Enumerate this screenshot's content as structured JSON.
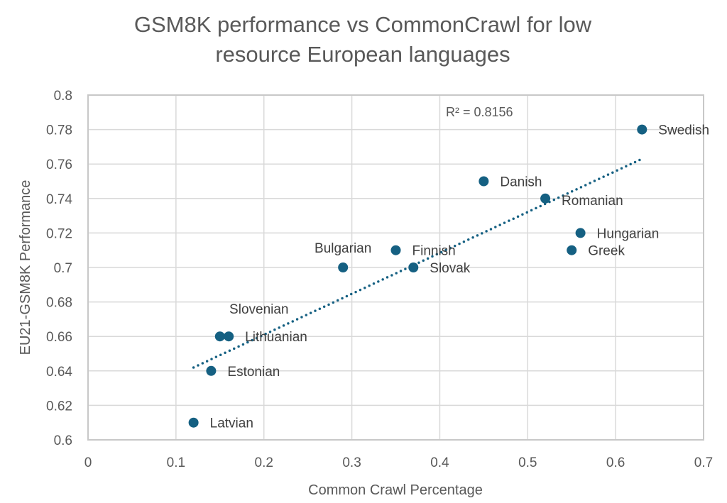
{
  "chart_data": {
    "type": "scatter",
    "title": [
      "GSM8K performance vs CommonCrawl for low",
      "resource European languages"
    ],
    "xlabel": "Common Crawl Percentage",
    "ylabel": "EU21-GSM8K Performance",
    "xlim": [
      0,
      0.7
    ],
    "ylim": [
      0.6,
      0.8
    ],
    "xticks": [
      0,
      0.1,
      0.2,
      0.3,
      0.4,
      0.5,
      0.6,
      0.7
    ],
    "xtick_labels": [
      "0",
      "0.1",
      "0.2",
      "0.3",
      "0.4",
      "0.5",
      "0.6",
      "0.7"
    ],
    "yticks": [
      0.6,
      0.62,
      0.64,
      0.66,
      0.68,
      0.7,
      0.72,
      0.74,
      0.76,
      0.78,
      0.8
    ],
    "ytick_labels": [
      "0.6",
      "0.62",
      "0.64",
      "0.66",
      "0.68",
      "0.7",
      "0.72",
      "0.74",
      "0.76",
      "0.78",
      "0.8"
    ],
    "grid": true,
    "point_color": "#156082",
    "points": [
      {
        "label": "Swedish",
        "x": 0.63,
        "y": 0.78,
        "label_pos": "right"
      },
      {
        "label": "Danish",
        "x": 0.45,
        "y": 0.75,
        "label_pos": "right"
      },
      {
        "label": "Romanian",
        "x": 0.52,
        "y": 0.74,
        "label_pos": "right-low"
      },
      {
        "label": "Hungarian",
        "x": 0.56,
        "y": 0.72,
        "label_pos": "right"
      },
      {
        "label": "Greek",
        "x": 0.55,
        "y": 0.71,
        "label_pos": "right"
      },
      {
        "label": "Finnish",
        "x": 0.35,
        "y": 0.71,
        "label_pos": "right"
      },
      {
        "label": "Slovak",
        "x": 0.37,
        "y": 0.7,
        "label_pos": "right"
      },
      {
        "label": "Bulgarian",
        "x": 0.29,
        "y": 0.7,
        "label_pos": "above"
      },
      {
        "label": "Slovenian",
        "x": 0.15,
        "y": 0.66,
        "label_pos": "above"
      },
      {
        "label": "Lithuanian",
        "x": 0.16,
        "y": 0.66,
        "label_pos": "right"
      },
      {
        "label": "Estonian",
        "x": 0.14,
        "y": 0.64,
        "label_pos": "right"
      },
      {
        "label": "Latvian",
        "x": 0.12,
        "y": 0.61,
        "label_pos": "right"
      }
    ],
    "trendline": {
      "type": "linear",
      "style": "dotted",
      "color": "#156082",
      "x_range": [
        0.12,
        0.63
      ],
      "y_at_range": [
        0.642,
        0.763
      ],
      "r_squared_label": "R² = 0.8156",
      "r_squared": 0.8156
    }
  }
}
